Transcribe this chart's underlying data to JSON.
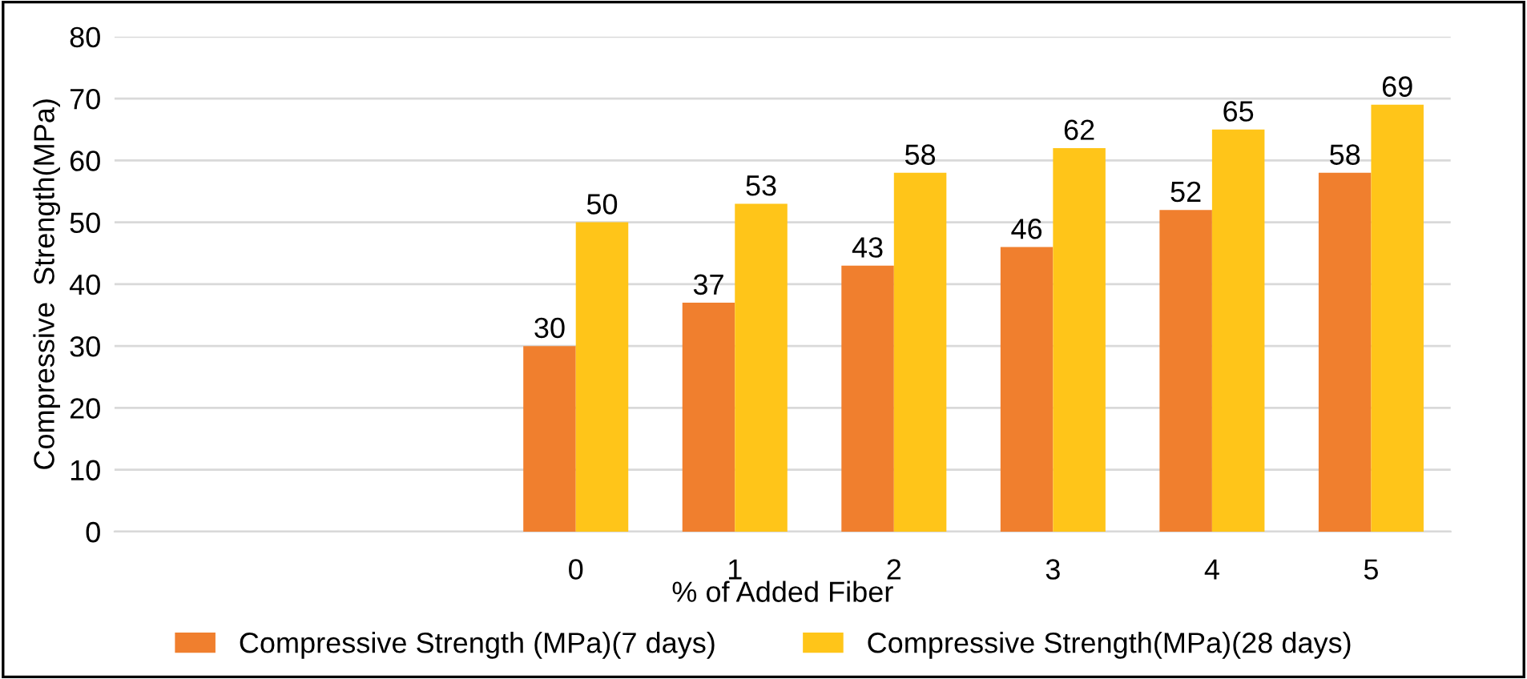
{
  "chart_data": {
    "type": "bar",
    "xlabel": "% of Added Fiber",
    "ylabel": "Compressive  Strength(MPa)",
    "categories": [
      null,
      null,
      "0",
      "1",
      "2",
      "3",
      "4",
      "5"
    ],
    "series": [
      {
        "name": "Compressive Strength (MPa)(7 days)",
        "color": "#f07f2e",
        "values": [
          null,
          null,
          30,
          37,
          43,
          46,
          52,
          58
        ]
      },
      {
        "name": "Compressive Strength(MPa)(28 days)",
        "color": "#ffc519",
        "values": [
          null,
          null,
          50,
          53,
          58,
          62,
          65,
          69
        ]
      }
    ],
    "ylim": [
      0,
      80
    ],
    "yticks": [
      0,
      10,
      20,
      30,
      40,
      50,
      60,
      70,
      80
    ],
    "grid": "y",
    "legend": "bottom",
    "data_labels": true
  }
}
